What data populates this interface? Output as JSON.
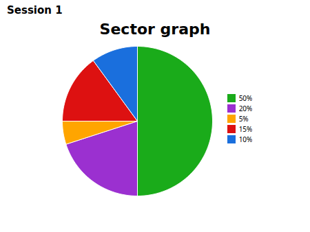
{
  "chart_data": {
    "type": "pie",
    "title": "Sector graph",
    "annotations": [
      "Session 1"
    ],
    "categories": [
      "50%",
      "20%",
      "5%",
      "15%",
      "10%"
    ],
    "values": [
      50,
      20,
      5,
      15,
      10
    ],
    "colors": [
      "#1aab1a",
      "#9b30d0",
      "#ffa500",
      "#dd1111",
      "#1a6fdd"
    ],
    "legend": "right"
  }
}
